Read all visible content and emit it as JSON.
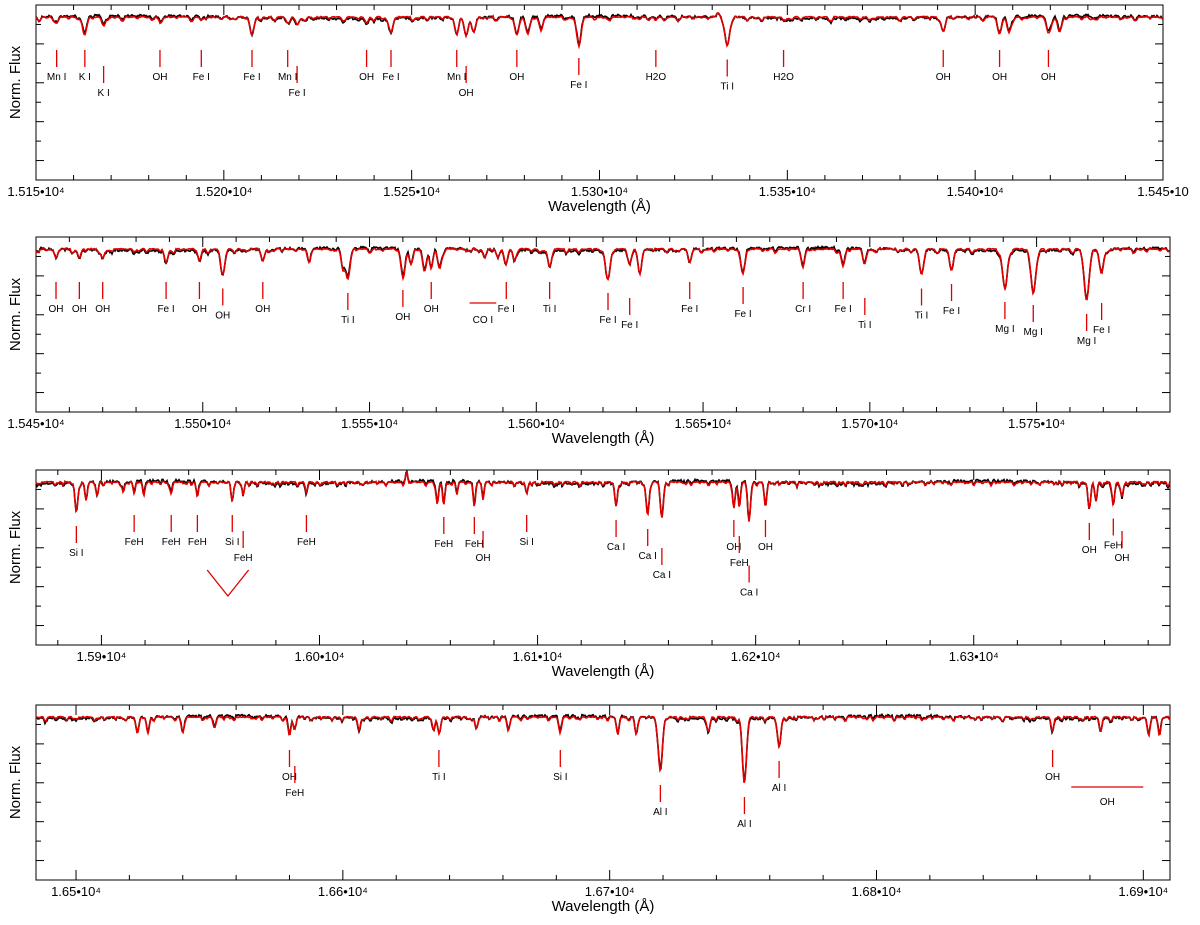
{
  "colors": {
    "observed": "#000000",
    "model": "#e00000",
    "marker": "#e00000",
    "frame": "#000000"
  },
  "chart_data": [
    {
      "type": "line",
      "xlabel": "Wavelength (Å)",
      "ylabel": "Norm. Flux",
      "xlim": [
        15150,
        15450
      ],
      "xticks": [
        15150,
        15200,
        15250,
        15300,
        15350,
        15400,
        15450
      ],
      "xtick_labels": [
        "1.515•10⁴",
        "1.520•10⁴",
        "1.525•10⁴",
        "1.530•10⁴",
        "1.535•10⁴",
        "1.540•10⁴",
        "1.545•10"
      ],
      "series": [],
      "lines": [
        {
          "x": [
            15155.5
          ],
          "depth": 0.22,
          "label": "Mn I"
        },
        {
          "x": [
            15163
          ],
          "depth": 0.55,
          "label": "K I"
        },
        {
          "x": [
            15168
          ],
          "depth": 0.3,
          "label": "K I"
        },
        {
          "x": [
            15183
          ],
          "depth": 0.15,
          "label": "OH"
        },
        {
          "x": [
            15194
          ],
          "depth": 0.1,
          "label": "Fe I"
        },
        {
          "x": [
            15207.5
          ],
          "depth": 0.6,
          "label": "Fe I"
        },
        {
          "x": [
            15217
          ],
          "depth": 0.2,
          "label": "Mn I"
        },
        {
          "x": [
            15219.5
          ],
          "depth": 0.25,
          "label": "Fe I"
        },
        {
          "x": [
            15238
          ],
          "depth": 0.2,
          "label": "OH"
        },
        {
          "x": [
            15244.5
          ],
          "depth": 0.5,
          "label": "Fe I"
        },
        {
          "x": [
            15262
          ],
          "depth": 0.45,
          "label": "Mn I"
        },
        {
          "x": [
            15264.5
          ],
          "depth": 0.6,
          "label": "OH"
        },
        {
          "x": [
            15266.5
          ],
          "depth": 0.5,
          "label": ""
        },
        {
          "x": [
            15278
          ],
          "depth": 0.6,
          "label": "OH"
        },
        {
          "x": [
            15281
          ],
          "depth": 0.5,
          "label": ""
        },
        {
          "x": [
            15284.5
          ],
          "depth": 0.4,
          "label": ""
        },
        {
          "x": [
            15294.5
          ],
          "depth": 0.9,
          "label": "Fe I"
        },
        {
          "x": [
            15315
          ],
          "depth": 0.1,
          "label": "H2O"
        },
        {
          "x": [
            15317.5
          ],
          "depth": 0.1,
          "label": ""
        },
        {
          "x": [
            15334
          ],
          "depth": 0.95,
          "label": "Ti I"
        },
        {
          "x": [
            15349
          ],
          "depth": 0.1,
          "label": "H2O"
        },
        {
          "x": [
            15391.5
          ],
          "depth": 0.4,
          "label": "OH"
        },
        {
          "x": [
            15406.5
          ],
          "depth": 0.55,
          "label": "OH"
        },
        {
          "x": [
            15409
          ],
          "depth": 0.5,
          "label": ""
        },
        {
          "x": [
            15419.5
          ],
          "depth": 0.55,
          "label": "OH"
        },
        {
          "x": [
            15422.5
          ],
          "depth": 0.5,
          "label": ""
        },
        {
          "x": [
            15331.5
          ],
          "depth": -0.25,
          "label": ""
        }
      ]
    },
    {
      "type": "line",
      "xlabel": "Wavelength (Å)",
      "ylabel": "Norm. Flux",
      "xlim": [
        15450,
        15790
      ],
      "xticks": [
        15450,
        15500,
        15550,
        15600,
        15650,
        15700,
        15750
      ],
      "xtick_labels": [
        "1.545•10⁴",
        "1.550•10⁴",
        "1.555•10⁴",
        "1.560•10⁴",
        "1.565•10⁴",
        "1.570•10⁴",
        "1.575•10⁴"
      ],
      "series": [],
      "lines": [
        {
          "x": [
            15456
          ],
          "depth": 0.3,
          "label": "OH"
        },
        {
          "x": [
            15463
          ],
          "depth": 0.3,
          "label": "OH"
        },
        {
          "x": [
            15470
          ],
          "depth": 0.3,
          "label": "OH"
        },
        {
          "x": [
            15489
          ],
          "depth": 0.45,
          "label": "Fe I"
        },
        {
          "x": [
            15499
          ],
          "depth": 0.35,
          "label": "OH"
        },
        {
          "x": [
            15506
          ],
          "depth": 0.85,
          "label": "OH"
        },
        {
          "x": [
            15518
          ],
          "depth": 0.4,
          "label": "OH"
        },
        {
          "x": [
            15532
          ],
          "depth": 0.35,
          "label": ""
        },
        {
          "x": [
            15542
          ],
          "depth": 0.55,
          "label": ""
        },
        {
          "x": [
            15543.5
          ],
          "depth": 1.0,
          "label": "Ti I"
        },
        {
          "x": [
            15560
          ],
          "depth": 0.9,
          "label": "OH"
        },
        {
          "x": [
            15562.5
          ],
          "depth": 0.5,
          "label": ""
        },
        {
          "x": [
            15566.5
          ],
          "depth": 0.75,
          "label": ""
        },
        {
          "x": [
            15568.5
          ],
          "depth": 0.55,
          "label": "OH"
        },
        {
          "x": [
            15571
          ],
          "depth": 0.65,
          "label": ""
        },
        {
          "x": [
            15584.5
          ],
          "depth": 0.3,
          "label": ""
        },
        {
          "x": [
            15588.5
          ],
          "depth": 0.3,
          "label": ""
        },
        {
          "x": [
            15591
          ],
          "depth": 0.4,
          "label": "Fe I"
        },
        {
          "x": [
            15593.5
          ],
          "depth": 0.4,
          "label": ""
        },
        {
          "x": [
            15604
          ],
          "depth": 0.6,
          "label": "Ti I"
        },
        {
          "x": [
            15621.5
          ],
          "depth": 1.0,
          "label": "Fe I"
        },
        {
          "x": [
            15631
          ],
          "depth": 0.7,
          "label": ""
        },
        {
          "x": [
            15628
          ],
          "depth": 0.5,
          "label": "Fe I"
        },
        {
          "x": [
            15646
          ],
          "depth": 0.45,
          "label": "Fe I"
        },
        {
          "x": [
            15662
          ],
          "depth": 0.8,
          "label": "Fe I"
        },
        {
          "x": [
            15680
          ],
          "depth": 0.5,
          "label": "Cr I"
        },
        {
          "x": [
            15692
          ],
          "depth": 0.55,
          "label": "Fe I"
        },
        {
          "x": [
            15698.5
          ],
          "depth": 0.45,
          "label": "Ti I"
        },
        {
          "x": [
            15715.5
          ],
          "depth": 0.85,
          "label": "Ti I"
        },
        {
          "x": [
            15724.5
          ],
          "depth": 0.7,
          "label": "Fe I"
        },
        {
          "x": [
            15740.5
          ],
          "depth": 1.3,
          "label": "Mg I"
        },
        {
          "x": [
            15749
          ],
          "depth": 1.4,
          "label": "Mg I"
        },
        {
          "x": [
            15765
          ],
          "depth": 1.7,
          "label": "Mg I"
        },
        {
          "x": [
            15769.5
          ],
          "depth": 0.8,
          "label": "Fe I"
        }
      ],
      "co_band": {
        "x": [
          15580,
          15588
        ],
        "label": "CO I"
      }
    },
    {
      "type": "line",
      "xlabel": "Wavelength (Å)",
      "ylabel": "Norm. Flux",
      "xlim": [
        15870,
        16390
      ],
      "xticks": [
        15900,
        16000,
        16100,
        16200,
        16300
      ],
      "xtick_labels": [
        "1.59•10⁴",
        "1.60•10⁴",
        "1.61•10⁴",
        "1.62•10⁴",
        "1.63•10⁴"
      ],
      "series": [],
      "lines": [
        {
          "x": [
            15888.5
          ],
          "depth": 1.0,
          "label": "Si I"
        },
        {
          "x": [
            15893
          ],
          "depth": 0.6,
          "label": ""
        },
        {
          "x": [
            15898
          ],
          "depth": 0.45,
          "label": ""
        },
        {
          "x": [
            15910
          ],
          "depth": 0.35,
          "label": ""
        },
        {
          "x": [
            15915
          ],
          "depth": 0.4,
          "label": "FeH"
        },
        {
          "x": [
            15919.5
          ],
          "depth": 0.35,
          "label": ""
        },
        {
          "x": [
            15932
          ],
          "depth": 0.4,
          "label": "FeH"
        },
        {
          "x": [
            15944
          ],
          "depth": 0.5,
          "label": "FeH"
        },
        {
          "x": [
            15960
          ],
          "depth": 0.55,
          "label": "Si I"
        },
        {
          "x": [
            15965
          ],
          "depth": 0.45,
          "label": "FeH"
        },
        {
          "x": [
            15994
          ],
          "depth": 0.35,
          "label": "FeH"
        },
        {
          "x": [
            16040
          ],
          "depth": -0.35,
          "label": ""
        },
        {
          "x": [
            16054
          ],
          "depth": 0.75,
          "label": ""
        },
        {
          "x": [
            16057
          ],
          "depth": 0.7,
          "label": "FeH"
        },
        {
          "x": [
            16063
          ],
          "depth": 0.4,
          "label": ""
        },
        {
          "x": [
            16071
          ],
          "depth": 0.7,
          "label": "FeH"
        },
        {
          "x": [
            16075
          ],
          "depth": 0.55,
          "label": "OH"
        },
        {
          "x": [
            16095
          ],
          "depth": 0.4,
          "label": "Si I"
        },
        {
          "x": [
            16136
          ],
          "depth": 0.8,
          "label": "Ca I"
        },
        {
          "x": [
            16150.5
          ],
          "depth": 1.1,
          "label": "Ca I"
        },
        {
          "x": [
            16157
          ],
          "depth": 1.2,
          "label": "Ca I"
        },
        {
          "x": [
            16190
          ],
          "depth": 0.8,
          "label": "OH"
        },
        {
          "x": [
            16192.5
          ],
          "depth": 0.8,
          "label": "FeH"
        },
        {
          "x": [
            16197
          ],
          "depth": 1.25,
          "label": "Ca I"
        },
        {
          "x": [
            16204.5
          ],
          "depth": 0.8,
          "label": "OH"
        },
        {
          "x": [
            16353
          ],
          "depth": 0.9,
          "label": "OH"
        },
        {
          "x": [
            16356
          ],
          "depth": 0.6,
          "label": ""
        },
        {
          "x": [
            16364
          ],
          "depth": 0.75,
          "label": "FeH"
        },
        {
          "x": [
            16368
          ],
          "depth": 0.5,
          "label": "OH"
        }
      ],
      "feh_v": {
        "x": [
          15948.5,
          15958,
          15967.5
        ]
      }
    },
    {
      "type": "line",
      "xlabel": "Wavelength (Å)",
      "ylabel": "Norm. Flux",
      "xlim": [
        16485,
        16910
      ],
      "xticks": [
        16500,
        16600,
        16700,
        16800,
        16900
      ],
      "xtick_labels": [
        "1.65•10⁴",
        "1.66•10⁴",
        "1.67•10⁴",
        "1.68•10⁴",
        "1.69•10⁴"
      ],
      "series": [],
      "lines": [
        {
          "x": [
            16523
          ],
          "depth": 0.55,
          "label": ""
        },
        {
          "x": [
            16527
          ],
          "depth": 0.5,
          "label": ""
        },
        {
          "x": [
            16540
          ],
          "depth": 0.5,
          "label": ""
        },
        {
          "x": [
            16552
          ],
          "depth": 0.35,
          "label": ""
        },
        {
          "x": [
            16580
          ],
          "depth": 0.6,
          "label": "OH"
        },
        {
          "x": [
            16582
          ],
          "depth": 0.4,
          "label": "FeH"
        },
        {
          "x": [
            16606
          ],
          "depth": 0.4,
          "label": ""
        },
        {
          "x": [
            16634
          ],
          "depth": 0.45,
          "label": ""
        },
        {
          "x": [
            16636
          ],
          "depth": 0.5,
          "label": "Ti I"
        },
        {
          "x": [
            16650
          ],
          "depth": 0.4,
          "label": ""
        },
        {
          "x": [
            16662
          ],
          "depth": 0.45,
          "label": ""
        },
        {
          "x": [
            16681.5
          ],
          "depth": 0.5,
          "label": "Si I"
        },
        {
          "x": [
            16703
          ],
          "depth": 0.55,
          "label": ""
        },
        {
          "x": [
            16710
          ],
          "depth": 0.55,
          "label": ""
        },
        {
          "x": [
            16719
          ],
          "depth": 1.8,
          "label": "Al I"
        },
        {
          "x": [
            16737
          ],
          "depth": 0.45,
          "label": ""
        },
        {
          "x": [
            16750.5
          ],
          "depth": 2.2,
          "label": "Al I"
        },
        {
          "x": [
            16763.5
          ],
          "depth": 1.0,
          "label": "Al I"
        },
        {
          "x": [
            16866
          ],
          "depth": 0.4,
          "label": "OH"
        },
        {
          "x": [
            16884
          ],
          "depth": 0.45,
          "label": ""
        },
        {
          "x": [
            16902
          ],
          "depth": 0.6,
          "label": ""
        },
        {
          "x": [
            16906
          ],
          "depth": 0.5,
          "label": ""
        }
      ],
      "oh_band": {
        "x": [
          16873,
          16900
        ],
        "label": "OH"
      }
    }
  ]
}
